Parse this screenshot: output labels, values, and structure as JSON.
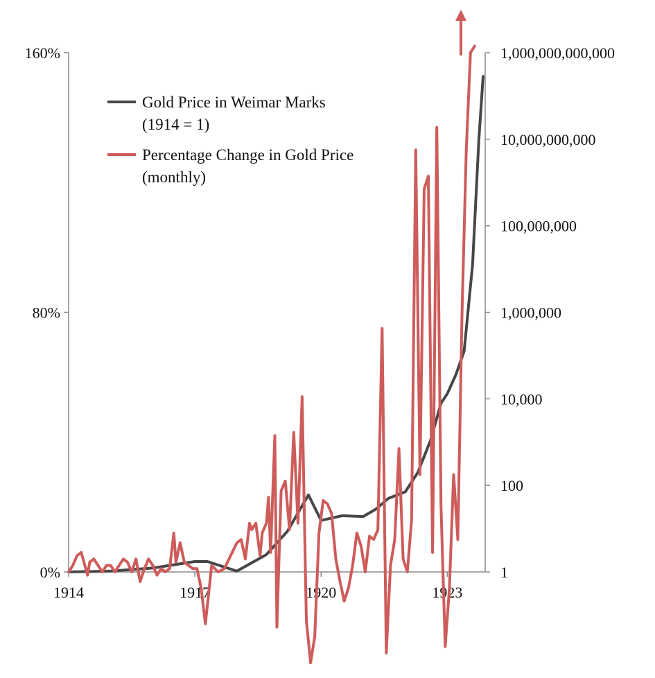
{
  "chart_data": {
    "type": "line",
    "title": "",
    "x_ticks": [
      "1914",
      "1917",
      "1920",
      "1923"
    ],
    "x_tick_values": [
      1914,
      1917,
      1920,
      1923
    ],
    "xlim": [
      1914,
      1923.9
    ],
    "left_axis": {
      "label": "Percentage Change in Gold Price (monthly)",
      "ticks": [
        "160%",
        "80%",
        "0%"
      ],
      "tick_values": [
        160,
        80,
        0
      ],
      "ylim": [
        0,
        160
      ]
    },
    "right_axis": {
      "label": "Gold Price in Weimar Marks (1914 = 1)",
      "scale": "log",
      "ticks": [
        "1,000,000,000,000",
        "10,000,000,000",
        "100,000,000",
        "1,000,000",
        "10,000",
        "100",
        "1"
      ],
      "tick_exponents": [
        12,
        10,
        8,
        6,
        4,
        2,
        0
      ],
      "ylim_log10": [
        0,
        12
      ]
    },
    "legend": [
      {
        "label_line1": "Gold Price in Weimar Marks",
        "label_line2": "(1914 = 1)",
        "color": "#474747"
      },
      {
        "label_line1": "Percentage Change in Gold Price",
        "label_line2": "(monthly)",
        "color": "#cd5c5a"
      }
    ],
    "series": [
      {
        "name": "Gold Price in Weimar Marks (1914 = 1)",
        "axis": "right",
        "color": "#474747",
        "x": [
          1914.0,
          1915.0,
          1916.0,
          1917.0,
          1917.3,
          1918.0,
          1918.7,
          1919.2,
          1919.7,
          1920.0,
          1920.5,
          1921.0,
          1921.3,
          1921.6,
          1922.0,
          1922.3,
          1922.6,
          1922.85,
          1923.0,
          1923.2,
          1923.4,
          1923.6,
          1923.75,
          1923.85
        ],
        "log10": [
          0,
          0.02,
          0.09,
          0.24,
          0.24,
          0.02,
          0.4,
          0.94,
          1.78,
          1.19,
          1.3,
          1.28,
          1.45,
          1.7,
          1.85,
          2.3,
          3.04,
          3.9,
          4.12,
          4.55,
          5.1,
          7.1,
          10.0,
          11.45
        ]
      },
      {
        "name": "Percentage Change in Gold Price (monthly)",
        "axis": "left",
        "color": "#cd5c5a",
        "x": [
          1914.0,
          1914.1,
          1914.2,
          1914.3,
          1914.45,
          1914.5,
          1914.6,
          1914.7,
          1914.8,
          1914.9,
          1915.0,
          1915.1,
          1915.2,
          1915.3,
          1915.4,
          1915.5,
          1915.6,
          1915.7,
          1915.8,
          1915.9,
          1916.0,
          1916.1,
          1916.2,
          1916.3,
          1916.4,
          1916.5,
          1916.55,
          1916.65,
          1916.75,
          1916.85,
          1916.95,
          1917.05,
          1917.15,
          1917.25,
          1917.4,
          1917.55,
          1917.7,
          1917.85,
          1918.0,
          1918.1,
          1918.2,
          1918.3,
          1918.35,
          1918.45,
          1918.55,
          1918.6,
          1918.7,
          1918.75,
          1918.8,
          1918.9,
          1918.95,
          1919.05,
          1919.15,
          1919.25,
          1919.35,
          1919.45,
          1919.55,
          1919.65,
          1919.75,
          1919.85,
          1919.95,
          1920.05,
          1920.15,
          1920.25,
          1920.35,
          1920.45,
          1920.55,
          1920.65,
          1920.75,
          1920.85,
          1920.95,
          1921.05,
          1921.15,
          1921.25,
          1921.35,
          1921.45,
          1921.55,
          1921.65,
          1921.75,
          1921.85,
          1921.95,
          1922.05,
          1922.15,
          1922.25,
          1922.35,
          1922.45,
          1922.55,
          1922.65,
          1922.75,
          1922.85,
          1922.95,
          1923.05,
          1923.15,
          1923.25,
          1923.35,
          1923.45,
          1923.55,
          1923.65
        ],
        "values": [
          0,
          2,
          5,
          6,
          -1,
          3,
          4,
          2,
          0,
          2,
          2,
          0,
          2,
          4,
          3,
          0,
          4,
          -3,
          1,
          4,
          2,
          -1,
          1,
          0,
          1,
          12,
          3,
          9,
          3,
          2,
          1,
          1,
          -5,
          -16,
          2,
          0,
          1,
          5,
          9,
          10,
          4,
          15,
          13,
          15,
          5,
          12,
          15,
          23,
          6,
          42,
          -17,
          25,
          28,
          13,
          43,
          15,
          54,
          -15,
          -28,
          -20,
          12,
          22,
          21,
          18,
          4,
          -3,
          -9,
          -5,
          2,
          12,
          8,
          0,
          11,
          10,
          13,
          75,
          -25,
          2,
          10,
          38,
          4,
          0,
          16,
          130,
          30,
          118,
          122,
          6,
          137,
          20,
          -23,
          -5,
          30,
          10,
          80,
          130,
          160,
          165
        ]
      }
    ]
  }
}
